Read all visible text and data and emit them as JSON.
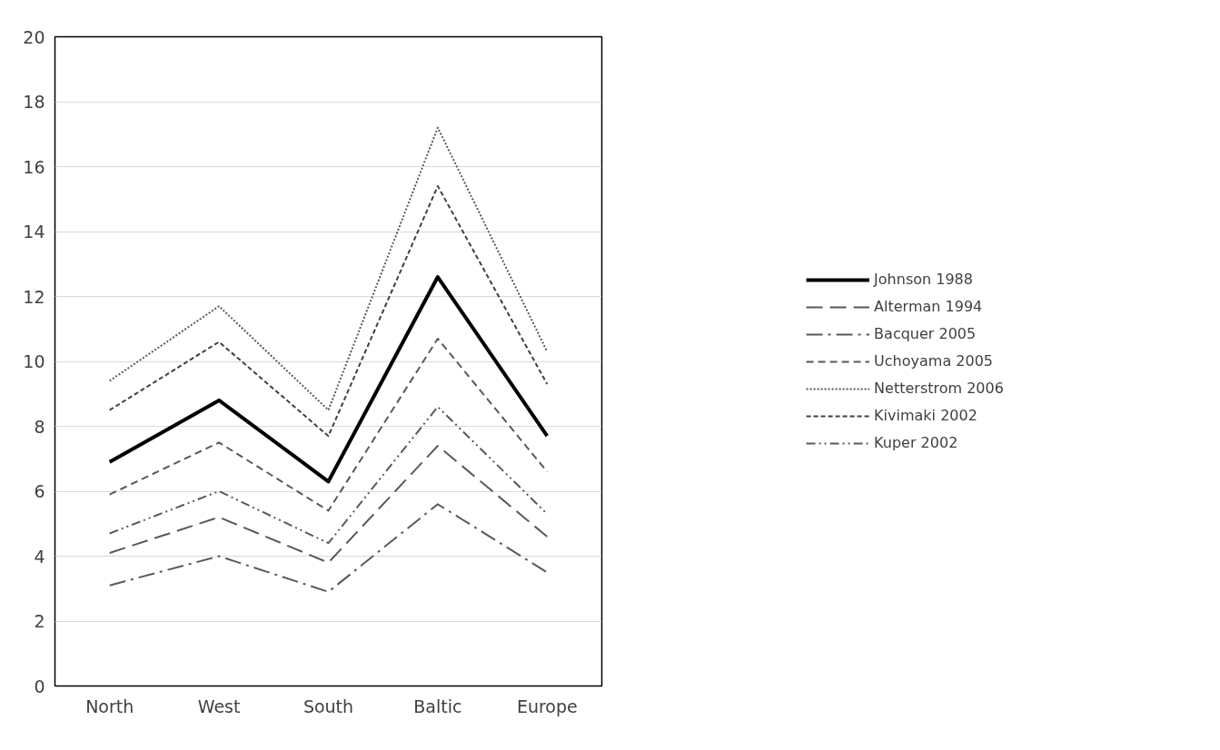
{
  "chart_data": {
    "type": "line",
    "categories": [
      "North",
      "West",
      "South",
      "Baltic",
      "Europe"
    ],
    "ylim": [
      0,
      20
    ],
    "yticks": [
      0,
      2,
      4,
      6,
      8,
      10,
      12,
      14,
      16,
      18,
      20
    ],
    "grid": "y",
    "legend": "right",
    "marker": "none",
    "series": [
      {
        "name": "Johnson 1988",
        "color": "#000000",
        "line_style": "solid",
        "values": [
          6.9,
          8.8,
          6.3,
          12.6,
          7.7
        ]
      },
      {
        "name": "Alterman 1994",
        "color": "#595959",
        "line_style": "longdash",
        "values": [
          4.1,
          5.2,
          3.8,
          7.4,
          4.6
        ]
      },
      {
        "name": "Bacquer 2005",
        "color": "#595959",
        "line_style": "longdashdot",
        "values": [
          3.1,
          4.0,
          2.9,
          5.6,
          3.5
        ]
      },
      {
        "name": "Uchoyama 2005",
        "color": "#595959",
        "line_style": "dashed",
        "values": [
          5.9,
          7.5,
          5.4,
          10.7,
          6.6
        ]
      },
      {
        "name": "Netterstrom 2006",
        "color": "#595959",
        "line_style": "dotted",
        "values": [
          9.4,
          11.7,
          8.5,
          17.2,
          10.3
        ]
      },
      {
        "name": "Kivimaki 2002",
        "color": "#404040",
        "line_style": "shortdash",
        "values": [
          8.5,
          10.6,
          7.7,
          15.4,
          9.3
        ]
      },
      {
        "name": "Kuper 2002",
        "color": "#595959",
        "line_style": "dashdotdot",
        "values": [
          4.7,
          6.0,
          4.4,
          8.6,
          5.3
        ]
      }
    ]
  }
}
